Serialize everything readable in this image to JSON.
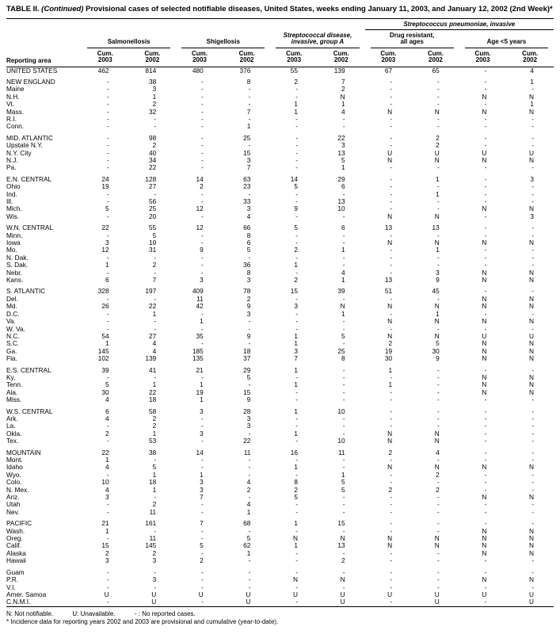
{
  "title": {
    "part1": "TABLE II.",
    "continued": "(Continued)",
    "rest": "Provisional cases of selected notifiable diseases, United States, weeks ending January 11, 2003, and January 12, 2002 (2nd Week)*"
  },
  "header": {
    "reporting_area": "Reporting area",
    "strep_pneumo": "Streptococcus pneumoniae, invasive",
    "cum": "Cum.",
    "years": [
      "2003",
      "2002"
    ],
    "groups": [
      {
        "l1": "",
        "l2": "Salmonellosis"
      },
      {
        "l1": "",
        "l2": "Shigellosis"
      },
      {
        "l1": "Streptococcal disease,",
        "l2": "invasive, group A"
      },
      {
        "l1": "Drug resistant,",
        "l2": "all ages"
      },
      {
        "l1": "",
        "l2": "Age <5 years"
      }
    ]
  },
  "groups": [
    [
      {
        "area": "UNITED STATES",
        "values": [
          "462",
          "814",
          "480",
          "376",
          "55",
          "139",
          "67",
          "65",
          "-",
          "4"
        ]
      }
    ],
    [
      {
        "area": "NEW ENGLAND",
        "values": [
          "-",
          "38",
          "-",
          "8",
          "2",
          "7",
          "-",
          "-",
          "-",
          "1"
        ]
      },
      {
        "area": "Maine",
        "values": [
          "-",
          "3",
          "-",
          "-",
          "-",
          "2",
          "-",
          "-",
          "-",
          "-"
        ]
      },
      {
        "area": "N.H.",
        "values": [
          "-",
          "1",
          "-",
          "-",
          "-",
          "N",
          "-",
          "-",
          "N",
          "N"
        ]
      },
      {
        "area": "Vt.",
        "values": [
          "-",
          "2",
          "-",
          "-",
          "1",
          "1",
          "-",
          "-",
          "-",
          "1"
        ]
      },
      {
        "area": "Mass.",
        "values": [
          "-",
          "32",
          "-",
          "7",
          "1",
          "4",
          "N",
          "N",
          "N",
          "N"
        ]
      },
      {
        "area": "R.I.",
        "values": [
          "-",
          "-",
          "-",
          "-",
          "-",
          "-",
          "-",
          "-",
          "-",
          "-"
        ]
      },
      {
        "area": "Conn.",
        "values": [
          "-",
          "-",
          "-",
          "1",
          "-",
          "-",
          "-",
          "-",
          "-",
          "-"
        ]
      }
    ],
    [
      {
        "area": "MID. ATLANTIC",
        "values": [
          "-",
          "98",
          "-",
          "25",
          "-",
          "22",
          "-",
          "2",
          "-",
          "-"
        ]
      },
      {
        "area": "Upstate N.Y.",
        "values": [
          "-",
          "2",
          "-",
          "-",
          "-",
          "3",
          "-",
          "2",
          "-",
          "-"
        ]
      },
      {
        "area": "N.Y. City",
        "values": [
          "-",
          "40",
          "-",
          "15",
          "-",
          "13",
          "U",
          "U",
          "U",
          "U"
        ]
      },
      {
        "area": "N.J.",
        "values": [
          "-",
          "34",
          "-",
          "3",
          "-",
          "5",
          "N",
          "N",
          "N",
          "N"
        ]
      },
      {
        "area": "Pa.",
        "values": [
          "-",
          "22",
          "-",
          "7",
          "-",
          "1",
          "-",
          "-",
          "-",
          "-"
        ]
      }
    ],
    [
      {
        "area": "E.N. CENTRAL",
        "values": [
          "24",
          "128",
          "14",
          "63",
          "14",
          "29",
          "-",
          "1",
          "-",
          "3"
        ]
      },
      {
        "area": "Ohio",
        "values": [
          "19",
          "27",
          "2",
          "23",
          "5",
          "6",
          "-",
          "-",
          "-",
          "-"
        ]
      },
      {
        "area": "Ind.",
        "values": [
          "-",
          "-",
          "-",
          "-",
          "-",
          "-",
          "-",
          "1",
          "-",
          "-"
        ]
      },
      {
        "area": "Ill.",
        "values": [
          "-",
          "56",
          "-",
          "33",
          "-",
          "13",
          "-",
          "-",
          "-",
          "-"
        ]
      },
      {
        "area": "Mich.",
        "values": [
          "5",
          "25",
          "12",
          "3",
          "9",
          "10",
          "-",
          "-",
          "N",
          "N"
        ]
      },
      {
        "area": "Wis.",
        "values": [
          "-",
          "20",
          "-",
          "4",
          "-",
          "-",
          "N",
          "N",
          "-",
          "3"
        ]
      }
    ],
    [
      {
        "area": "W.N. CENTRAL",
        "values": [
          "22",
          "55",
          "12",
          "66",
          "5",
          "6",
          "13",
          "13",
          "-",
          "-"
        ]
      },
      {
        "area": "Minn.",
        "values": [
          "-",
          "5",
          "-",
          "8",
          "-",
          "-",
          "-",
          "-",
          "-",
          "-"
        ]
      },
      {
        "area": "Iowa",
        "values": [
          "3",
          "10",
          "-",
          "6",
          "-",
          "-",
          "N",
          "N",
          "N",
          "N"
        ]
      },
      {
        "area": "Mo.",
        "values": [
          "12",
          "31",
          "9",
          "5",
          "2",
          "1",
          "-",
          "1",
          "-",
          "-"
        ]
      },
      {
        "area": "N. Dak.",
        "values": [
          "-",
          "-",
          "-",
          "-",
          "-",
          "-",
          "-",
          "-",
          "-",
          "-"
        ]
      },
      {
        "area": "S. Dak.",
        "values": [
          "1",
          "2",
          "-",
          "36",
          "1",
          "-",
          "-",
          "-",
          "-",
          "-"
        ]
      },
      {
        "area": "Nebr.",
        "values": [
          "-",
          "-",
          "-",
          "8",
          "-",
          "4",
          "-",
          "3",
          "N",
          "N"
        ]
      },
      {
        "area": "Kans.",
        "values": [
          "6",
          "7",
          "3",
          "3",
          "2",
          "1",
          "13",
          "9",
          "N",
          "N"
        ]
      }
    ],
    [
      {
        "area": "S. ATLANTIC",
        "values": [
          "328",
          "197",
          "409",
          "78",
          "15",
          "39",
          "51",
          "45",
          "-",
          "-"
        ]
      },
      {
        "area": "Del.",
        "values": [
          "-",
          "-",
          "11",
          "2",
          "-",
          "-",
          "-",
          "-",
          "N",
          "N"
        ]
      },
      {
        "area": "Md.",
        "values": [
          "26",
          "22",
          "42",
          "9",
          "3",
          "N",
          "N",
          "N",
          "N",
          "N"
        ]
      },
      {
        "area": "D.C.",
        "values": [
          "-",
          "1",
          "-",
          "3",
          "-",
          "1",
          "-",
          "1",
          "-",
          "-"
        ]
      },
      {
        "area": "Va.",
        "values": [
          "-",
          "-",
          "1",
          "-",
          "-",
          "-",
          "N",
          "N",
          "N",
          "N"
        ]
      },
      {
        "area": "W. Va.",
        "values": [
          "-",
          "-",
          "-",
          "-",
          "-",
          "-",
          "-",
          "-",
          "-",
          "-"
        ]
      },
      {
        "area": "N.C.",
        "values": [
          "54",
          "27",
          "35",
          "9",
          "1",
          "5",
          "N",
          "N",
          "U",
          "U"
        ]
      },
      {
        "area": "S.C.",
        "values": [
          "1",
          "4",
          "-",
          "-",
          "1",
          "-",
          "2",
          "5",
          "N",
          "N"
        ]
      },
      {
        "area": "Ga.",
        "values": [
          "145",
          "4",
          "185",
          "18",
          "3",
          "25",
          "19",
          "30",
          "N",
          "N"
        ]
      },
      {
        "area": "Fla.",
        "values": [
          "102",
          "139",
          "135",
          "37",
          "7",
          "8",
          "30",
          "9",
          "N",
          "N"
        ]
      }
    ],
    [
      {
        "area": "E.S. CENTRAL",
        "values": [
          "39",
          "41",
          "21",
          "29",
          "1",
          "-",
          "1",
          "-",
          "-",
          "-"
        ]
      },
      {
        "area": "Ky.",
        "values": [
          "-",
          "-",
          "-",
          "5",
          "-",
          "-",
          "-",
          "-",
          "N",
          "N"
        ]
      },
      {
        "area": "Tenn.",
        "values": [
          "5",
          "1",
          "1",
          "-",
          "1",
          "-",
          "1",
          "-",
          "N",
          "N"
        ]
      },
      {
        "area": "Ala.",
        "values": [
          "30",
          "22",
          "19",
          "15",
          "-",
          "-",
          "-",
          "-",
          "N",
          "N"
        ]
      },
      {
        "area": "Miss.",
        "values": [
          "4",
          "18",
          "1",
          "9",
          "-",
          "-",
          "-",
          "-",
          "-",
          "-"
        ]
      }
    ],
    [
      {
        "area": "W.S. CENTRAL",
        "values": [
          "6",
          "58",
          "3",
          "28",
          "1",
          "10",
          "-",
          "-",
          "-",
          "-"
        ]
      },
      {
        "area": "Ark.",
        "values": [
          "4",
          "2",
          "-",
          "3",
          "-",
          "-",
          "-",
          "-",
          "-",
          "-"
        ]
      },
      {
        "area": "La.",
        "values": [
          "-",
          "2",
          "-",
          "3",
          "-",
          "-",
          "-",
          "-",
          "-",
          "-"
        ]
      },
      {
        "area": "Okla.",
        "values": [
          "2",
          "1",
          "3",
          "-",
          "1",
          "-",
          "N",
          "N",
          "-",
          "-"
        ]
      },
      {
        "area": "Tex.",
        "values": [
          "-",
          "53",
          "-",
          "22",
          "-",
          "10",
          "N",
          "N",
          "-",
          "-"
        ]
      }
    ],
    [
      {
        "area": "MOUNTAIN",
        "values": [
          "22",
          "38",
          "14",
          "11",
          "16",
          "11",
          "2",
          "4",
          "-",
          "-"
        ]
      },
      {
        "area": "Mont.",
        "values": [
          "1",
          "-",
          "-",
          "-",
          "-",
          "-",
          "-",
          "-",
          "-",
          "-"
        ]
      },
      {
        "area": "Idaho",
        "values": [
          "4",
          "5",
          "-",
          "-",
          "1",
          "-",
          "N",
          "N",
          "N",
          "N"
        ]
      },
      {
        "area": "Wyo.",
        "values": [
          "-",
          "1",
          "1",
          "-",
          "-",
          "1",
          "-",
          "2",
          "-",
          "-"
        ]
      },
      {
        "area": "Colo.",
        "values": [
          "10",
          "18",
          "3",
          "4",
          "8",
          "5",
          "-",
          "-",
          "-",
          "-"
        ]
      },
      {
        "area": "N. Mex.",
        "values": [
          "4",
          "1",
          "3",
          "2",
          "2",
          "5",
          "2",
          "2",
          "-",
          "-"
        ]
      },
      {
        "area": "Ariz.",
        "values": [
          "3",
          "-",
          "7",
          "-",
          "5",
          "-",
          "-",
          "-",
          "N",
          "N"
        ]
      },
      {
        "area": "Utah",
        "values": [
          "-",
          "2",
          "-",
          "4",
          "-",
          "-",
          "-",
          "-",
          "-",
          "-"
        ]
      },
      {
        "area": "Nev.",
        "values": [
          "-",
          "11",
          "-",
          "1",
          "-",
          "-",
          "-",
          "-",
          "-",
          "-"
        ]
      }
    ],
    [
      {
        "area": "PACIFIC",
        "values": [
          "21",
          "161",
          "7",
          "68",
          "1",
          "15",
          "-",
          "-",
          "-",
          "-"
        ]
      },
      {
        "area": "Wash.",
        "values": [
          "1",
          "-",
          "-",
          "-",
          "-",
          "-",
          "-",
          "-",
          "N",
          "N"
        ]
      },
      {
        "area": "Oreg.",
        "values": [
          "-",
          "11",
          "-",
          "5",
          "N",
          "N",
          "N",
          "N",
          "N",
          "N"
        ]
      },
      {
        "area": "Calif.",
        "values": [
          "15",
          "145",
          "5",
          "62",
          "1",
          "13",
          "N",
          "N",
          "N",
          "N"
        ]
      },
      {
        "area": "Alaska",
        "values": [
          "2",
          "2",
          "-",
          "1",
          "-",
          "-",
          "-",
          "-",
          "N",
          "N"
        ]
      },
      {
        "area": "Hawaii",
        "values": [
          "3",
          "3",
          "2",
          "-",
          "-",
          "2",
          "-",
          "-",
          "-",
          "-"
        ]
      }
    ],
    [
      {
        "area": "Guam",
        "values": [
          "-",
          "-",
          "-",
          "-",
          "-",
          "-",
          "-",
          "-",
          "-",
          "-"
        ]
      },
      {
        "area": "P.R.",
        "values": [
          "-",
          "3",
          "-",
          "-",
          "N",
          "N",
          "-",
          "-",
          "N",
          "N"
        ]
      },
      {
        "area": "V.I.",
        "values": [
          "-",
          "-",
          "-",
          "-",
          "-",
          "-",
          "-",
          "-",
          "-",
          "-"
        ]
      },
      {
        "area": "Amer. Samoa",
        "values": [
          "U",
          "U",
          "U",
          "U",
          "U",
          "U",
          "U",
          "U",
          "U",
          "U"
        ]
      },
      {
        "area": "C.N.M.I.",
        "values": [
          "-",
          "U",
          "-",
          "U",
          "-",
          "U",
          "-",
          "U",
          "-",
          "U"
        ]
      }
    ]
  ],
  "footnotes": {
    "legend": [
      "N: Not notifiable.",
      "U: Unavailable.",
      "- : No reported cases."
    ],
    "note": "* Incidence data for reporting years 2002 and 2003 are provisional and cumulative (year-to-date)."
  }
}
